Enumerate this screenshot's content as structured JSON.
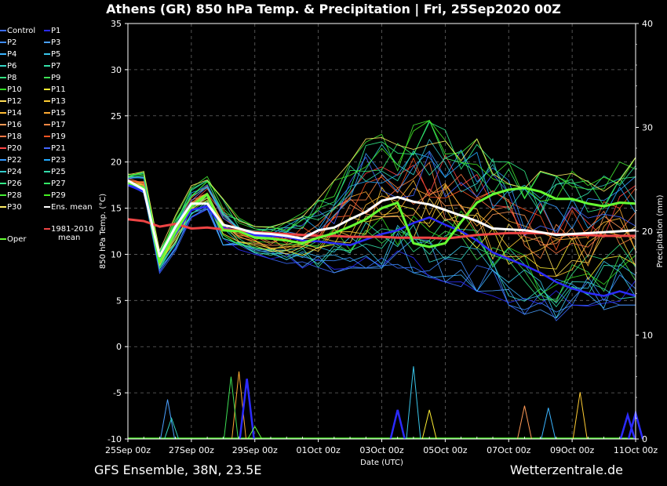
{
  "header": {
    "title": "Athens  (GR)  850 hPa Temp. & Precipitation | Fri, 25Sep2020 00Z"
  },
  "footer": {
    "left": "GFS Ensemble, 38N, 23.5E",
    "right": "Wetterzentrale.de"
  },
  "legend": {
    "members": [
      {
        "label": "Control",
        "color": "#3b6cff"
      },
      {
        "label": "P1",
        "color": "#2b2bff"
      },
      {
        "label": "P2",
        "color": "#3d8cff"
      },
      {
        "label": "P3",
        "color": "#4aa0ff"
      },
      {
        "label": "P4",
        "color": "#3ab4ff"
      },
      {
        "label": "P5",
        "color": "#39c6ea"
      },
      {
        "label": "P6",
        "color": "#35d6c8"
      },
      {
        "label": "P7",
        "color": "#33e0a8"
      },
      {
        "label": "P8",
        "color": "#33e080"
      },
      {
        "label": "P9",
        "color": "#3ee055"
      },
      {
        "label": "P10",
        "color": "#33dd22"
      },
      {
        "label": "P11",
        "color": "#ffee33"
      },
      {
        "label": "P12",
        "color": "#ffdd55"
      },
      {
        "label": "P13",
        "color": "#ffcc33"
      },
      {
        "label": "P14",
        "color": "#ffbb33"
      },
      {
        "label": "P15",
        "color": "#ffaa33"
      },
      {
        "label": "P16",
        "color": "#ff9955"
      },
      {
        "label": "P17",
        "color": "#ff8844"
      },
      {
        "label": "P18",
        "color": "#ff7744"
      },
      {
        "label": "P19",
        "color": "#ff5522"
      },
      {
        "label": "P20",
        "color": "#ff4444"
      },
      {
        "label": "P21",
        "color": "#4466ff"
      },
      {
        "label": "P22",
        "color": "#3399ff"
      },
      {
        "label": "P23",
        "color": "#22aaff"
      },
      {
        "label": "P24",
        "color": "#33cccc"
      },
      {
        "label": "P25",
        "color": "#33ddaa"
      },
      {
        "label": "P26",
        "color": "#33ee88"
      },
      {
        "label": "P27",
        "color": "#33ee66"
      },
      {
        "label": "P28",
        "color": "#44ee33"
      },
      {
        "label": "P29",
        "color": "#44ee22"
      },
      {
        "label": "P30",
        "color": "#ffee66"
      }
    ],
    "ens_mean": {
      "label": "Ens. mean",
      "color": "#ffffff"
    },
    "clim": {
      "label_lines": [
        "1981-2010",
        "mean"
      ],
      "color": "#ee4444"
    },
    "oper": {
      "label": "Oper",
      "color": "#66ff33"
    }
  },
  "chart_data": {
    "type": "line",
    "title": "Athens  (GR)  850 hPa Temp. & Precipitation | Fri, 25Sep2020 00Z",
    "xlabel": "Date (UTC)",
    "ylabel_left": "850 hPa Temp. (°C)",
    "ylabel_right": "Precipitation (mm)",
    "x_ticks": [
      "25Sep 00z",
      "27Sep 00z",
      "29Sep 00z",
      "01Oct 00z",
      "03Oct 00z",
      "05Oct 00z",
      "07Oct 00z",
      "09Oct 00z",
      "11Oct 00z"
    ],
    "x_hours_per_tick": 48,
    "x_range_hours": [
      0,
      384
    ],
    "ylim_left": [
      -10,
      35
    ],
    "y_ticks_left": [
      -10,
      -5,
      0,
      5,
      10,
      15,
      20,
      25,
      30,
      35
    ],
    "ylim_right": [
      0,
      40
    ],
    "y_ticks_right": [
      0,
      10,
      20,
      30,
      40
    ],
    "grid": true,
    "legend_position": "left-outside",
    "temp_step_hours": 12,
    "ens_mean": [
      18,
      17,
      9.8,
      13,
      15.5,
      15.5,
      13.2,
      12.8,
      12.3,
      12.2,
      12,
      11.7,
      12.6,
      12.9,
      13.8,
      14.6,
      15.8,
      16.2,
      15.7,
      15.4,
      14.8,
      14.2,
      13.6,
      12.8,
      12.7,
      12.6,
      12.4,
      12.1,
      12.2,
      12.3,
      12.4,
      12.5,
      12.6
    ],
    "clim_mean": [
      13.8,
      13.6,
      13,
      13.3,
      12.8,
      12.9,
      12.7,
      12.6,
      12.4,
      12.3,
      12.2,
      12.1,
      12,
      12,
      11.9,
      11.9,
      11.9,
      11.8,
      11.8,
      11.8,
      11.7,
      11.9,
      12.1,
      12.2,
      12.3,
      12.3,
      12.3,
      12.2,
      12.1,
      12.1,
      12,
      12,
      12
    ],
    "oper": [
      17.8,
      17.2,
      9.2,
      12.4,
      15.2,
      16.5,
      12.6,
      12.5,
      11.8,
      11.7,
      11.5,
      11.2,
      11.8,
      12.3,
      13,
      13.8,
      15,
      15.6,
      11.2,
      10.8,
      11.2,
      13.5,
      15.6,
      16.5,
      17,
      17.2,
      16.8,
      16,
      16,
      15.5,
      15.2,
      15.6,
      15.5
    ],
    "highlight_member": {
      "name": "P1",
      "values": [
        17.5,
        16.8,
        9.5,
        12.2,
        14.8,
        15.2,
        12.9,
        12.5,
        12.1,
        12,
        11.9,
        11.5,
        11.4,
        11.2,
        11,
        11.6,
        12.2,
        12.6,
        13.4,
        14,
        13.2,
        12.5,
        11.5,
        10.2,
        9.5,
        8.8,
        8,
        7,
        6.3,
        5.8,
        5.5,
        6,
        5.5
      ]
    },
    "members_spread": {
      "low": [
        17,
        16,
        7.5,
        9.5,
        13,
        14,
        11,
        10.5,
        10,
        9.5,
        9,
        8.5,
        8,
        8,
        8.5,
        8.5,
        8.5,
        8.5,
        8,
        7.5,
        7,
        6.5,
        6,
        5.5,
        4.5,
        3.5,
        3,
        2.8,
        4.5,
        4,
        4,
        4.5,
        4.5
      ],
      "high": [
        19,
        19.5,
        11,
        15,
        18,
        19.5,
        16,
        14,
        13,
        13,
        13.5,
        14.5,
        16,
        18,
        20,
        22.5,
        23,
        22,
        24,
        24.5,
        24.5,
        23,
        22.5,
        21,
        20,
        19,
        19,
        18.5,
        19,
        18,
        19,
        20,
        20.5
      ]
    },
    "precip_events": [
      {
        "t": 30,
        "mm": 3.8,
        "member": "P3"
      },
      {
        "t": 33,
        "mm": 2,
        "member": "P6"
      },
      {
        "t": 84,
        "mm": 6.5,
        "member": "P15"
      },
      {
        "t": 90,
        "mm": 5.8,
        "member": "P1"
      },
      {
        "t": 78,
        "mm": 6,
        "member": "P9"
      },
      {
        "t": 96,
        "mm": 1.2,
        "member": "Oper"
      },
      {
        "t": 204,
        "mm": 2.8,
        "member": "P1"
      },
      {
        "t": 216,
        "mm": 7,
        "member": "P5"
      },
      {
        "t": 228,
        "mm": 2.8,
        "member": "P11"
      },
      {
        "t": 300,
        "mm": 3.2,
        "member": "P16"
      },
      {
        "t": 318,
        "mm": 3,
        "member": "P4"
      },
      {
        "t": 342,
        "mm": 4.5,
        "member": "P13"
      },
      {
        "t": 378,
        "mm": 2.3,
        "member": "P1"
      },
      {
        "t": 384,
        "mm": 2.5,
        "member": "P1"
      }
    ]
  }
}
